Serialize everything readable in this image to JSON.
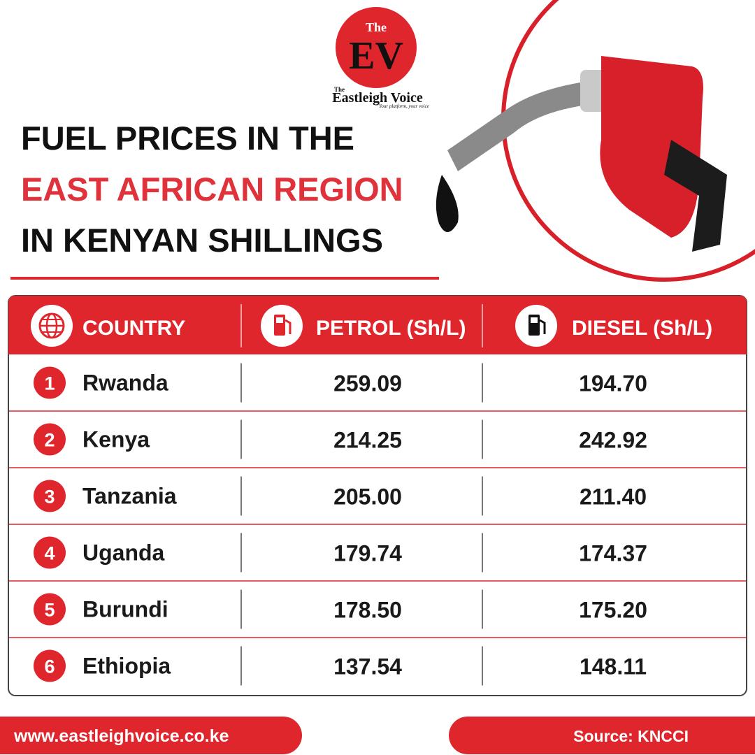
{
  "logo": {
    "the": "The",
    "mark": "EV",
    "small_the": "The",
    "name": "Eastleigh Voice",
    "tagline": "Your platform, your voice"
  },
  "header": {
    "line1": "FUEL PRICES IN THE",
    "line2": "EAST AFRICAN REGION",
    "line3": "IN KENYAN SHILLINGS"
  },
  "table": {
    "columns": [
      "COUNTRY",
      "PETROL (Sh/L)",
      "DIESEL (Sh/L)"
    ],
    "rows": [
      [
        1,
        "Rwanda",
        "259.09",
        "194.70"
      ],
      [
        2,
        "Kenya",
        "214.25",
        "242.92"
      ],
      [
        3,
        "Tanzania",
        "205.00",
        "211.40"
      ],
      [
        4,
        "Uganda",
        "179.74",
        "174.37"
      ],
      [
        5,
        "Burundi",
        "178.50",
        "175.20"
      ],
      [
        6,
        "Ethiopia",
        "137.54",
        "148.11"
      ]
    ]
  },
  "footer": {
    "website": "www.eastleighvoice.co.ke",
    "source": "Source: KNCCI"
  }
}
